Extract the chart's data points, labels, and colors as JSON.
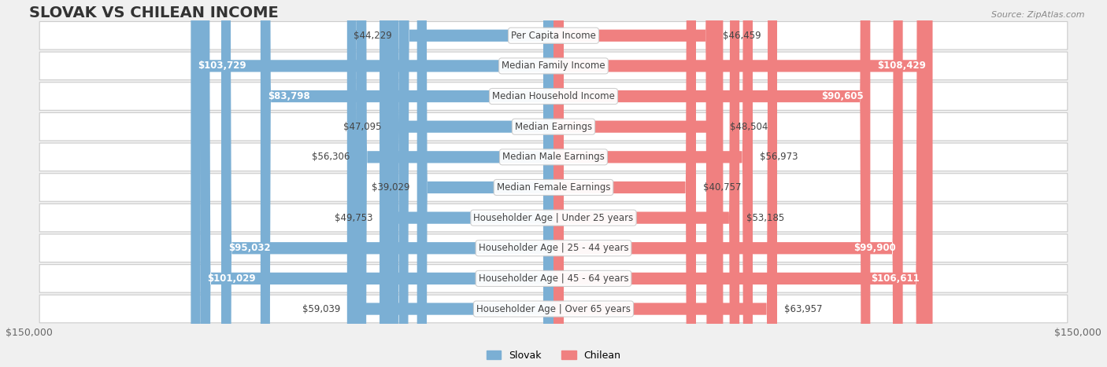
{
  "title": "SLOVAK VS CHILEAN INCOME",
  "source": "Source: ZipAtlas.com",
  "categories": [
    "Per Capita Income",
    "Median Family Income",
    "Median Household Income",
    "Median Earnings",
    "Median Male Earnings",
    "Median Female Earnings",
    "Householder Age | Under 25 years",
    "Householder Age | 25 - 44 years",
    "Householder Age | 45 - 64 years",
    "Householder Age | Over 65 years"
  ],
  "slovak_values": [
    44229,
    103729,
    83798,
    47095,
    56306,
    39029,
    49753,
    95032,
    101029,
    59039
  ],
  "chilean_values": [
    46459,
    108429,
    90605,
    48504,
    56973,
    40757,
    53185,
    99900,
    106611,
    63957
  ],
  "slovak_color": "#7bafd4",
  "chilean_color": "#f08080",
  "slovak_color_dark": "#5b9abf",
  "chilean_color_dark": "#e05070",
  "label_color_dark": "#333333",
  "label_color_light": "#ffffff",
  "bg_color": "#f0f0f0",
  "row_bg_color": "#f8f8f8",
  "max_value": 150000,
  "legend_slovak": "Slovak",
  "legend_chilean": "Chilean",
  "title_fontsize": 14,
  "label_fontsize": 8.5,
  "tick_fontsize": 9
}
